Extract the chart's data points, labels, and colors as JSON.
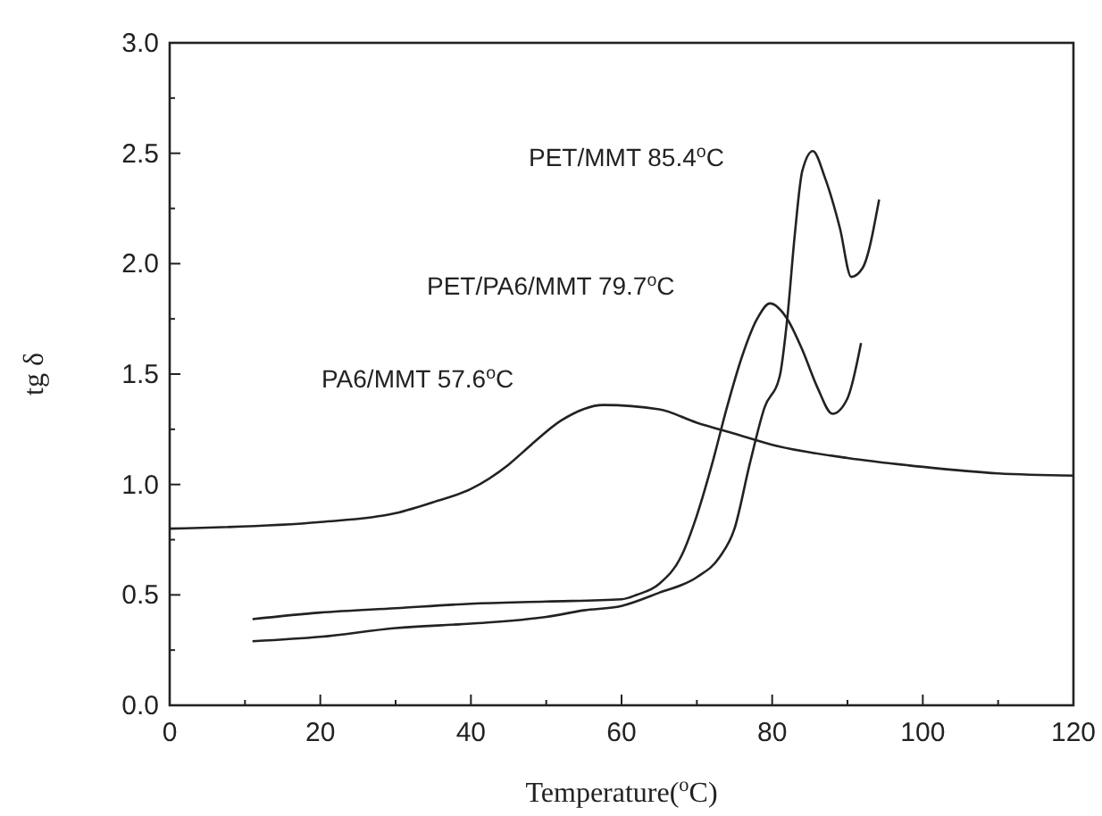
{
  "chart_data": {
    "type": "line",
    "xlabel": "Temperature($^{o}$C)",
    "ylabel": "tg δ",
    "xlim": [
      0,
      120
    ],
    "ylim": [
      0,
      3.0
    ],
    "xticks": [
      0,
      {
        "value": 10,
        "label": null
      },
      20,
      {
        "value": 30,
        "label": null
      },
      40,
      {
        "value": 50,
        "label": null
      },
      60,
      {
        "value": 70,
        "label": null
      },
      80,
      {
        "value": 90,
        "label": null
      },
      100,
      {
        "value": 110,
        "label": null
      },
      120
    ],
    "yticks": [
      {
        "value": 0,
        "label": "0.0"
      },
      {
        "value": 0.25,
        "label": null
      },
      0.5,
      {
        "value": 0.75,
        "label": null
      },
      {
        "value": 1,
        "label": "1.0"
      },
      {
        "value": 1.25,
        "label": null
      },
      1.5,
      {
        "value": 1.75,
        "label": null
      },
      {
        "value": 2,
        "label": "2.0"
      },
      {
        "value": 2.25,
        "label": null
      },
      2.5,
      {
        "value": 2.75,
        "label": null
      },
      {
        "value": 3,
        "label": "3.0"
      }
    ],
    "grid": false,
    "marker": "none",
    "line_style": "solid",
    "series": [
      {
        "color": "#222222",
        "x": [
          0,
          20,
          30,
          35,
          40,
          45,
          48,
          52,
          57.6,
          65,
          70,
          75,
          80,
          90,
          100,
          110,
          120
        ],
        "values": [
          0.8,
          0.83,
          0.87,
          0.92,
          0.98,
          1.09,
          1.18,
          1.29,
          1.36,
          1.34,
          1.28,
          1.23,
          1.18,
          1.12,
          1.08,
          1.05,
          1.04
        ]
      },
      {
        "color": "#222222",
        "x": [
          11,
          20,
          30,
          40,
          50,
          60,
          62,
          65,
          68,
          70,
          72,
          74,
          76,
          78,
          79.7,
          82,
          84,
          86,
          88,
          90,
          91.8
        ],
        "values": [
          0.39,
          0.42,
          0.44,
          0.46,
          0.47,
          0.48,
          0.5,
          0.55,
          0.68,
          0.86,
          1.09,
          1.35,
          1.58,
          1.75,
          1.82,
          1.75,
          1.61,
          1.44,
          1.32,
          1.39,
          1.64
        ]
      },
      {
        "color": "#222222",
        "x": [
          11,
          20,
          30,
          40,
          50,
          55,
          60,
          65,
          70,
          73,
          75,
          77,
          79,
          81,
          82,
          83,
          84,
          85.4,
          87,
          89,
          90.5,
          92,
          94.2
        ],
        "values": [
          0.29,
          0.31,
          0.35,
          0.37,
          0.4,
          0.43,
          0.45,
          0.51,
          0.58,
          0.67,
          0.8,
          1.09,
          1.35,
          1.49,
          1.75,
          2.13,
          2.42,
          2.51,
          2.39,
          2.16,
          1.94,
          1.98,
          2.29
        ]
      }
    ],
    "annotations": [
      "PA6/MMT 57.6$^{o}$C",
      "PET/PA6/MMT 79.7$^{o}$C",
      "PET/MMT 85.4$^{o}$C"
    ]
  }
}
